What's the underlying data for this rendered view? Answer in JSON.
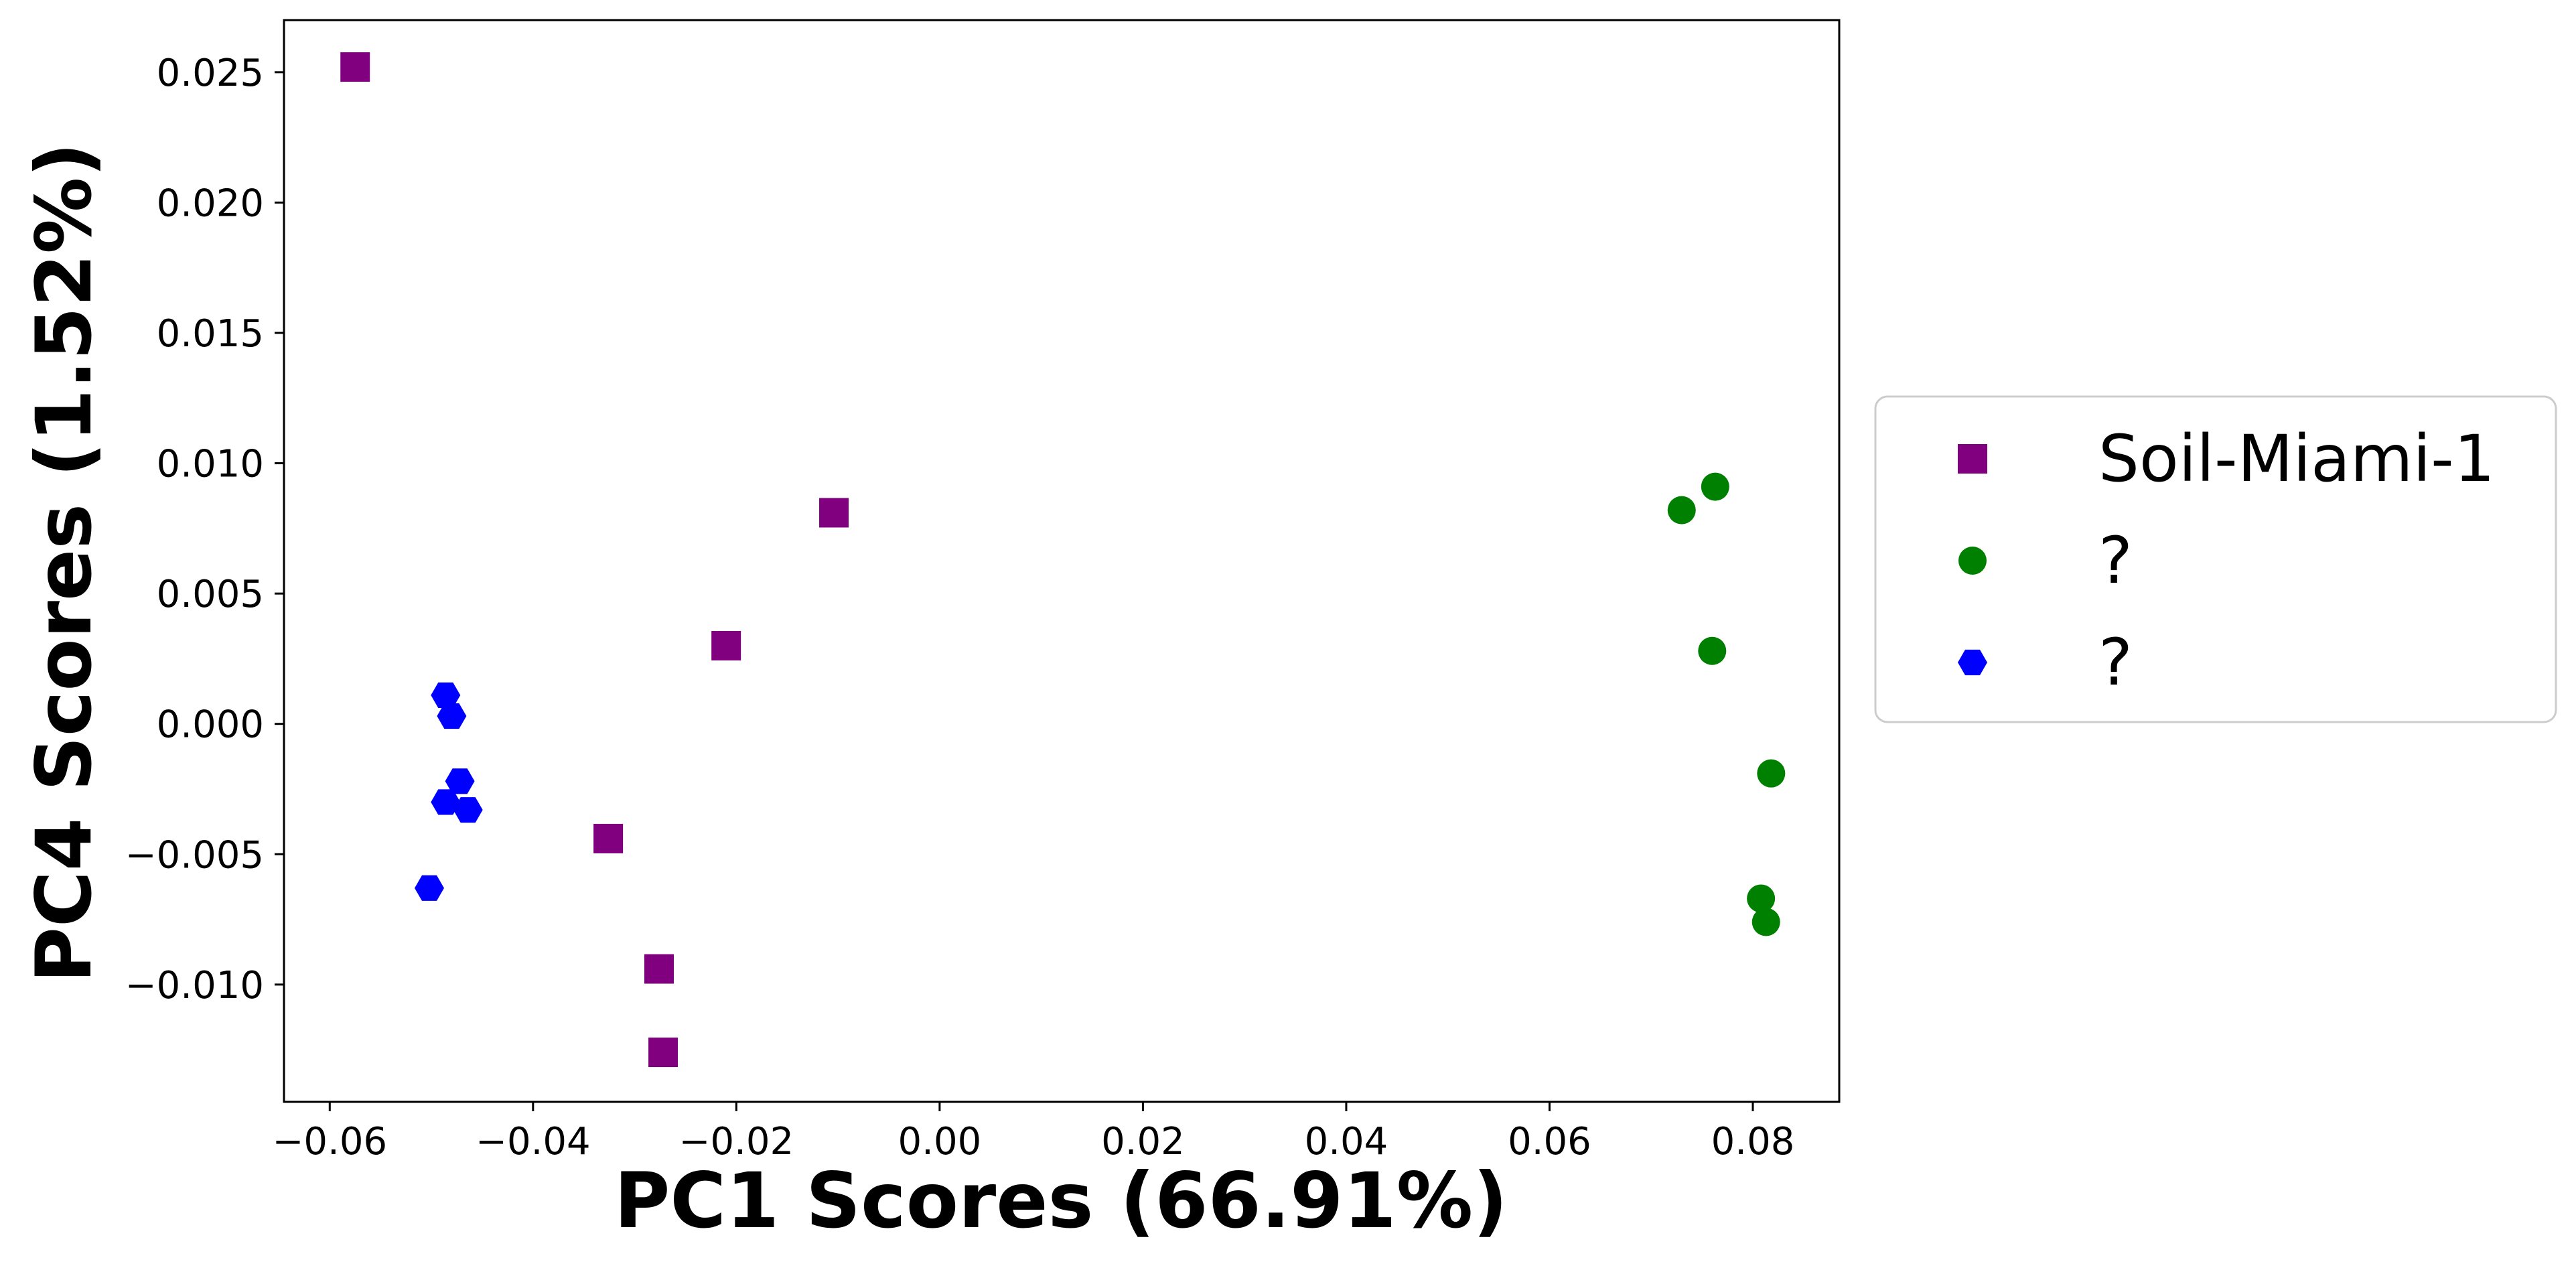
{
  "chart_data": {
    "type": "scatter",
    "xlabel": "PC1 Scores (66.91%)",
    "ylabel": "PC4 Scores (1.52%)",
    "xlim": [
      -0.0645,
      0.0885
    ],
    "ylim": [
      -0.0145,
      0.027
    ],
    "x_ticks": [
      {
        "value": -0.06,
        "label": "−0.06"
      },
      {
        "value": -0.04,
        "label": "−0.04"
      },
      {
        "value": -0.02,
        "label": "−0.02"
      },
      {
        "value": 0.0,
        "label": "0.00"
      },
      {
        "value": 0.02,
        "label": "0.02"
      },
      {
        "value": 0.04,
        "label": "0.04"
      },
      {
        "value": 0.06,
        "label": "0.06"
      },
      {
        "value": 0.08,
        "label": "0.08"
      }
    ],
    "y_ticks": [
      {
        "value": -0.01,
        "label": "−0.010"
      },
      {
        "value": -0.005,
        "label": "−0.005"
      },
      {
        "value": 0.0,
        "label": "0.000"
      },
      {
        "value": 0.005,
        "label": "0.005"
      },
      {
        "value": 0.01,
        "label": "0.010"
      },
      {
        "value": 0.015,
        "label": "0.015"
      },
      {
        "value": 0.02,
        "label": "0.020"
      },
      {
        "value": 0.025,
        "label": "0.025"
      }
    ],
    "grid": false,
    "legend_position": "right",
    "series": [
      {
        "name": "Soil-Miami-1",
        "marker": "square",
        "color": "#800080",
        "points": [
          {
            "x": -0.0575,
            "y": 0.0252
          },
          {
            "x": -0.0104,
            "y": 0.0081
          },
          {
            "x": -0.021,
            "y": 0.003
          },
          {
            "x": -0.0326,
            "y": -0.0044
          },
          {
            "x": -0.0276,
            "y": -0.0094
          },
          {
            "x": -0.0272,
            "y": -0.0126
          }
        ]
      },
      {
        "name": "?",
        "marker": "circle",
        "color": "#008000",
        "points": [
          {
            "x": 0.073,
            "y": 0.0082
          },
          {
            "x": 0.0763,
            "y": 0.0091
          },
          {
            "x": 0.076,
            "y": 0.0028
          },
          {
            "x": 0.0818,
            "y": -0.0019
          },
          {
            "x": 0.0808,
            "y": -0.0067
          },
          {
            "x": 0.0813,
            "y": -0.0076
          }
        ]
      },
      {
        "name": "?",
        "marker": "hexagon",
        "color": "#0000ff",
        "points": [
          {
            "x": -0.0486,
            "y": 0.0011
          },
          {
            "x": -0.048,
            "y": 0.0003
          },
          {
            "x": -0.0472,
            "y": -0.0022
          },
          {
            "x": -0.0486,
            "y": -0.003
          },
          {
            "x": -0.0464,
            "y": -0.0033
          },
          {
            "x": -0.0502,
            "y": -0.0063
          }
        ]
      }
    ]
  }
}
